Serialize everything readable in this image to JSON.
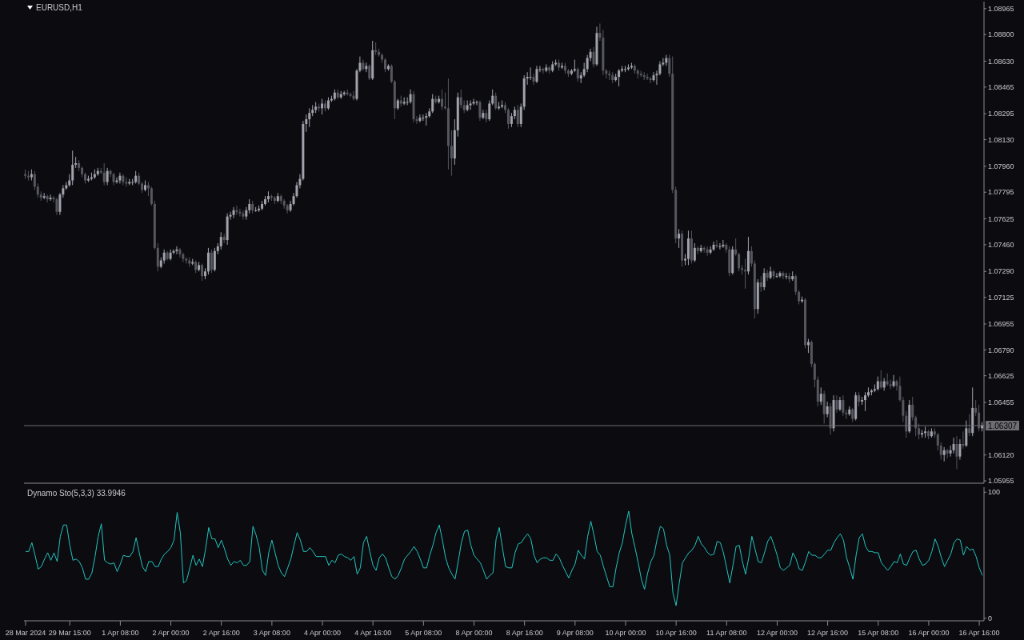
{
  "chart_data": [
    {
      "type": "candlestick",
      "title": "EURUSD,H1",
      "tick_labels": "y",
      "ohlc": [
        [
          1.0791,
          1.0794,
          1.0788,
          1.079
        ],
        [
          1.079,
          1.0793,
          1.0787,
          1.0789
        ],
        [
          1.0789,
          1.0794,
          1.0787,
          1.0791
        ],
        [
          1.0791,
          1.0793,
          1.0781,
          1.0783
        ],
        [
          1.0783,
          1.0785,
          1.0776,
          1.0778
        ],
        [
          1.0778,
          1.078,
          1.0774,
          1.0776
        ],
        [
          1.0776,
          1.0779,
          1.0775,
          1.0777
        ],
        [
          1.0777,
          1.0778,
          1.0773,
          1.0775
        ],
        [
          1.0775,
          1.0778,
          1.0774,
          1.0776
        ],
        [
          1.0776,
          1.0777,
          1.0773,
          1.0775
        ],
        [
          1.0775,
          1.0776,
          1.0765,
          1.0767
        ],
        [
          1.0767,
          1.0779,
          1.0765,
          1.0778
        ],
        [
          1.0778,
          1.0784,
          1.0776,
          1.0782
        ],
        [
          1.0782,
          1.0786,
          1.0781,
          1.0784
        ],
        [
          1.0784,
          1.0791,
          1.0783,
          1.0787
        ],
        [
          1.0787,
          1.0806,
          1.0784,
          1.0797
        ],
        [
          1.0797,
          1.0802,
          1.0795,
          1.0798
        ],
        [
          1.0798,
          1.08,
          1.0793,
          1.0795
        ],
        [
          1.0795,
          1.0796,
          1.0789,
          1.0791
        ],
        [
          1.0791,
          1.0792,
          1.0785,
          1.0787
        ],
        [
          1.0787,
          1.079,
          1.0786,
          1.0788
        ],
        [
          1.0788,
          1.0792,
          1.0787,
          1.0789
        ],
        [
          1.0789,
          1.0794,
          1.0788,
          1.0791
        ],
        [
          1.0791,
          1.0795,
          1.079,
          1.0793
        ],
        [
          1.0793,
          1.0795,
          1.0791,
          1.0792
        ],
        [
          1.0792,
          1.0798,
          1.0784,
          1.0786
        ],
        [
          1.0786,
          1.0795,
          1.0784,
          1.0793
        ],
        [
          1.0793,
          1.0794,
          1.0789,
          1.0791
        ],
        [
          1.0791,
          1.0792,
          1.0784,
          1.0786
        ],
        [
          1.0786,
          1.0789,
          1.0785,
          1.0787
        ],
        [
          1.0787,
          1.0792,
          1.0785,
          1.079
        ],
        [
          1.079,
          1.0791,
          1.0784,
          1.0786
        ],
        [
          1.0786,
          1.0789,
          1.0783,
          1.0785
        ],
        [
          1.0785,
          1.0788,
          1.0784,
          1.0786
        ],
        [
          1.0786,
          1.0788,
          1.0784,
          1.0786
        ],
        [
          1.0786,
          1.0793,
          1.0785,
          1.079
        ],
        [
          1.079,
          1.0792,
          1.0784,
          1.0785
        ],
        [
          1.0785,
          1.0786,
          1.0779,
          1.0781
        ],
        [
          1.0781,
          1.0787,
          1.078,
          1.0784
        ],
        [
          1.0784,
          1.0786,
          1.0777,
          1.0782
        ],
        [
          1.0782,
          1.0783,
          1.0771,
          1.0772
        ],
        [
          1.0772,
          1.0774,
          1.0743,
          1.0744
        ],
        [
          1.0744,
          1.0747,
          1.0729,
          1.0732
        ],
        [
          1.0732,
          1.0738,
          1.0731,
          1.0736
        ],
        [
          1.0736,
          1.0743,
          1.0734,
          1.0741
        ],
        [
          1.0741,
          1.0742,
          1.0736,
          1.0737
        ],
        [
          1.0737,
          1.0743,
          1.0736,
          1.0741
        ],
        [
          1.0741,
          1.0743,
          1.074,
          1.0742
        ],
        [
          1.0742,
          1.0745,
          1.074,
          1.0743
        ],
        [
          1.0743,
          1.0744,
          1.0738,
          1.074
        ],
        [
          1.074,
          1.0741,
          1.0735,
          1.0737
        ],
        [
          1.0737,
          1.0738,
          1.0734,
          1.0736
        ],
        [
          1.0736,
          1.0738,
          1.0732,
          1.0734
        ],
        [
          1.0734,
          1.0737,
          1.0733,
          1.0735
        ],
        [
          1.0735,
          1.0736,
          1.0728,
          1.073
        ],
        [
          1.073,
          1.0735,
          1.0729,
          1.0733
        ],
        [
          1.0733,
          1.0734,
          1.0723,
          1.0726
        ],
        [
          1.0726,
          1.0731,
          1.0724,
          1.0729
        ],
        [
          1.0729,
          1.0744,
          1.0727,
          1.0741
        ],
        [
          1.0741,
          1.0743,
          1.0728,
          1.073
        ],
        [
          1.073,
          1.0744,
          1.0729,
          1.0742
        ],
        [
          1.0742,
          1.0747,
          1.074,
          1.0745
        ],
        [
          1.0745,
          1.0754,
          1.0743,
          1.0751
        ],
        [
          1.0751,
          1.0753,
          1.0747,
          1.0749
        ],
        [
          1.0749,
          1.0766,
          1.0746,
          1.0764
        ],
        [
          1.0764,
          1.0767,
          1.0762,
          1.0765
        ],
        [
          1.0765,
          1.077,
          1.0763,
          1.0768
        ],
        [
          1.0768,
          1.0771,
          1.0765,
          1.0767
        ],
        [
          1.0767,
          1.0769,
          1.0764,
          1.0766
        ],
        [
          1.0766,
          1.0768,
          1.0762,
          1.0764
        ],
        [
          1.0764,
          1.077,
          1.0762,
          1.0768
        ],
        [
          1.0768,
          1.0775,
          1.0766,
          1.0772
        ],
        [
          1.0772,
          1.0774,
          1.0766,
          1.0768
        ],
        [
          1.0768,
          1.077,
          1.0767,
          1.0768
        ],
        [
          1.0768,
          1.0771,
          1.0767,
          1.0769
        ],
        [
          1.0769,
          1.0774,
          1.0768,
          1.0772
        ],
        [
          1.0772,
          1.0777,
          1.0771,
          1.0775
        ],
        [
          1.0775,
          1.078,
          1.0773,
          1.0777
        ],
        [
          1.0777,
          1.0778,
          1.0774,
          1.0776
        ],
        [
          1.0776,
          1.0777,
          1.0772,
          1.0774
        ],
        [
          1.0774,
          1.0779,
          1.0773,
          1.0777
        ],
        [
          1.0777,
          1.0778,
          1.0772,
          1.0774
        ],
        [
          1.0774,
          1.0775,
          1.0769,
          1.0771
        ],
        [
          1.0771,
          1.0772,
          1.0766,
          1.0768
        ],
        [
          1.0768,
          1.0774,
          1.0767,
          1.0772
        ],
        [
          1.0772,
          1.0779,
          1.0771,
          1.0777
        ],
        [
          1.0777,
          1.0786,
          1.0776,
          1.0784
        ],
        [
          1.0784,
          1.0791,
          1.0782,
          1.0788
        ],
        [
          1.0788,
          1.0825,
          1.0787,
          1.0823
        ],
        [
          1.0823,
          1.0829,
          1.0818,
          1.0826
        ],
        [
          1.0826,
          1.0833,
          1.0821,
          1.083
        ],
        [
          1.083,
          1.0835,
          1.0828,
          1.0832
        ],
        [
          1.0832,
          1.0837,
          1.083,
          1.0834
        ],
        [
          1.0834,
          1.0836,
          1.0831,
          1.0833
        ],
        [
          1.0833,
          1.0839,
          1.0829,
          1.0836
        ],
        [
          1.0836,
          1.0838,
          1.0831,
          1.0833
        ],
        [
          1.0833,
          1.084,
          1.0832,
          1.0838
        ],
        [
          1.0838,
          1.0841,
          1.0837,
          1.0839
        ],
        [
          1.0839,
          1.0845,
          1.0838,
          1.0843
        ],
        [
          1.0843,
          1.0845,
          1.0839,
          1.084
        ],
        [
          1.084,
          1.0844,
          1.0839,
          1.0842
        ],
        [
          1.0842,
          1.0844,
          1.0841,
          1.0843
        ],
        [
          1.0843,
          1.0845,
          1.0841,
          1.0842
        ],
        [
          1.0842,
          1.0843,
          1.084,
          1.0841
        ],
        [
          1.0841,
          1.0844,
          1.0838,
          1.0839
        ],
        [
          1.0839,
          1.0858,
          1.0838,
          1.0857
        ],
        [
          1.0857,
          1.0866,
          1.0856,
          1.0862
        ],
        [
          1.0862,
          1.0864,
          1.0857,
          1.0858
        ],
        [
          1.0858,
          1.0862,
          1.0856,
          1.086
        ],
        [
          1.086,
          1.0861,
          1.0851,
          1.0852
        ],
        [
          1.0852,
          1.0876,
          1.0851,
          1.087
        ],
        [
          1.087,
          1.0875,
          1.0867,
          1.0869
        ],
        [
          1.0869,
          1.0871,
          1.0866,
          1.0867
        ],
        [
          1.0867,
          1.0868,
          1.0862,
          1.0864
        ],
        [
          1.0864,
          1.0865,
          1.0856,
          1.0858
        ],
        [
          1.0858,
          1.0861,
          1.0857,
          1.086
        ],
        [
          1.086,
          1.0861,
          1.0849,
          1.085
        ],
        [
          1.085,
          1.0851,
          1.0826,
          1.0833
        ],
        [
          1.0833,
          1.0839,
          1.0832,
          1.0838
        ],
        [
          1.0838,
          1.0841,
          1.0834,
          1.0836
        ],
        [
          1.0836,
          1.084,
          1.0835,
          1.0837
        ],
        [
          1.0837,
          1.084,
          1.0835,
          1.0837
        ],
        [
          1.0837,
          1.0845,
          1.0836,
          1.0842
        ],
        [
          1.0842,
          1.0844,
          1.0824,
          1.0826
        ],
        [
          1.0826,
          1.0828,
          1.0823,
          1.0825
        ],
        [
          1.0825,
          1.0829,
          1.0824,
          1.0827
        ],
        [
          1.0827,
          1.0829,
          1.0825,
          1.0827
        ],
        [
          1.0827,
          1.083,
          1.0822,
          1.0828
        ],
        [
          1.0828,
          1.0833,
          1.0827,
          1.0831
        ],
        [
          1.0831,
          1.0842,
          1.083,
          1.0839
        ],
        [
          1.0839,
          1.0841,
          1.0836,
          1.0837
        ],
        [
          1.0837,
          1.0841,
          1.0836,
          1.0839
        ],
        [
          1.0839,
          1.0845,
          1.0832,
          1.0834
        ],
        [
          1.0834,
          1.0843,
          1.0832,
          1.0833
        ],
        [
          1.0833,
          1.0852,
          1.0794,
          1.0809
        ],
        [
          1.0809,
          1.0819,
          1.079,
          1.0801
        ],
        [
          1.0801,
          1.0826,
          1.0797,
          1.0819
        ],
        [
          1.0819,
          1.0843,
          1.0815,
          1.084
        ],
        [
          1.084,
          1.0845,
          1.0833,
          1.0835
        ],
        [
          1.0835,
          1.0838,
          1.083,
          1.0832
        ],
        [
          1.0832,
          1.0838,
          1.0831,
          1.0835
        ],
        [
          1.0835,
          1.0838,
          1.0832,
          1.0836
        ],
        [
          1.0836,
          1.0839,
          1.0835,
          1.0837
        ],
        [
          1.0837,
          1.0838,
          1.0835,
          1.0837
        ],
        [
          1.0837,
          1.0838,
          1.0825,
          1.0827
        ],
        [
          1.0827,
          1.0832,
          1.0826,
          1.083
        ],
        [
          1.083,
          1.0832,
          1.0824,
          1.0826
        ],
        [
          1.0826,
          1.0838,
          1.0825,
          1.0836
        ],
        [
          1.0836,
          1.0845,
          1.0835,
          1.0841
        ],
        [
          1.0841,
          1.0843,
          1.0832,
          1.0833
        ],
        [
          1.0833,
          1.0837,
          1.0832,
          1.0834
        ],
        [
          1.0834,
          1.0838,
          1.0833,
          1.0835
        ],
        [
          1.0835,
          1.0837,
          1.083,
          1.0832
        ],
        [
          1.0832,
          1.0833,
          1.082,
          1.0823
        ],
        [
          1.0823,
          1.083,
          1.0821,
          1.0828
        ],
        [
          1.0828,
          1.0834,
          1.0826,
          1.0832
        ],
        [
          1.0832,
          1.0835,
          1.0821,
          1.0823
        ],
        [
          1.0823,
          1.0836,
          1.0821,
          1.0834
        ],
        [
          1.0834,
          1.0854,
          1.0832,
          1.0852
        ],
        [
          1.0852,
          1.0856,
          1.0848,
          1.0853
        ],
        [
          1.0853,
          1.0859,
          1.0851,
          1.0853
        ],
        [
          1.0853,
          1.0855,
          1.0848,
          1.085
        ],
        [
          1.085,
          1.086,
          1.0849,
          1.0858
        ],
        [
          1.0858,
          1.086,
          1.0856,
          1.0858
        ],
        [
          1.0858,
          1.0859,
          1.0855,
          1.0857
        ],
        [
          1.0857,
          1.0861,
          1.0856,
          1.0859
        ],
        [
          1.0859,
          1.086,
          1.0855,
          1.0857
        ],
        [
          1.0857,
          1.0863,
          1.0856,
          1.0861
        ],
        [
          1.0861,
          1.0864,
          1.086,
          1.0862
        ],
        [
          1.0862,
          1.0864,
          1.0857,
          1.0859
        ],
        [
          1.0859,
          1.0862,
          1.0858,
          1.086
        ],
        [
          1.086,
          1.0862,
          1.0855,
          1.0857
        ],
        [
          1.0857,
          1.0858,
          1.0853,
          1.0855
        ],
        [
          1.0855,
          1.0858,
          1.0854,
          1.0857
        ],
        [
          1.0857,
          1.0864,
          1.0856,
          1.0858
        ],
        [
          1.0858,
          1.0859,
          1.085,
          1.0852
        ],
        [
          1.0852,
          1.0856,
          1.0849,
          1.0854
        ],
        [
          1.0854,
          1.0862,
          1.0853,
          1.0858
        ],
        [
          1.0858,
          1.0867,
          1.0856,
          1.0865
        ],
        [
          1.0865,
          1.0871,
          1.0863,
          1.0869
        ],
        [
          1.0869,
          1.0872,
          1.0859,
          1.0861
        ],
        [
          1.0861,
          1.0885,
          1.086,
          1.0881
        ],
        [
          1.0881,
          1.0887,
          1.0876,
          1.0878
        ],
        [
          1.0878,
          1.0883,
          1.0854,
          1.0857
        ],
        [
          1.0857,
          1.0858,
          1.0852,
          1.0855
        ],
        [
          1.0855,
          1.0857,
          1.0851,
          1.0854
        ],
        [
          1.0854,
          1.0856,
          1.0849,
          1.0851
        ],
        [
          1.0851,
          1.0855,
          1.085,
          1.0853
        ],
        [
          1.0853,
          1.0858,
          1.0847,
          1.0857
        ],
        [
          1.0857,
          1.086,
          1.0856,
          1.0858
        ],
        [
          1.0858,
          1.086,
          1.0856,
          1.0858
        ],
        [
          1.0858,
          1.0861,
          1.0857,
          1.0859
        ],
        [
          1.0859,
          1.0862,
          1.0858,
          1.086
        ],
        [
          1.086,
          1.0861,
          1.0855,
          1.0857
        ],
        [
          1.0857,
          1.0858,
          1.0852,
          1.0855
        ],
        [
          1.0855,
          1.0857,
          1.0853,
          1.0854
        ],
        [
          1.0854,
          1.0856,
          1.0851,
          1.0853
        ],
        [
          1.0853,
          1.0855,
          1.0851,
          1.0852
        ],
        [
          1.0852,
          1.0853,
          1.0849,
          1.0851
        ],
        [
          1.0851,
          1.0856,
          1.085,
          1.0854
        ],
        [
          1.0854,
          1.0857,
          1.0848,
          1.0855
        ],
        [
          1.0855,
          1.0863,
          1.0854,
          1.0861
        ],
        [
          1.0861,
          1.0865,
          1.086,
          1.0862
        ],
        [
          1.0862,
          1.0867,
          1.086,
          1.0865
        ],
        [
          1.0865,
          1.0867,
          1.0853,
          1.0855
        ],
        [
          1.0855,
          1.0866,
          1.0779,
          1.0781
        ],
        [
          1.0781,
          1.0783,
          1.0747,
          1.075
        ],
        [
          1.075,
          1.0756,
          1.0744,
          1.0753
        ],
        [
          1.0753,
          1.0755,
          1.0732,
          1.0736
        ],
        [
          1.0736,
          1.074,
          1.0733,
          1.0737
        ],
        [
          1.0737,
          1.0755,
          1.0733,
          1.075
        ],
        [
          1.075,
          1.0755,
          1.0734,
          1.0736
        ],
        [
          1.0736,
          1.0747,
          1.0735,
          1.0744
        ],
        [
          1.0744,
          1.0745,
          1.074,
          1.0742
        ],
        [
          1.0742,
          1.0746,
          1.0741,
          1.0744
        ],
        [
          1.0744,
          1.0745,
          1.0741,
          1.0743
        ],
        [
          1.0743,
          1.0745,
          1.0739,
          1.0741
        ],
        [
          1.0741,
          1.0745,
          1.074,
          1.0743
        ],
        [
          1.0743,
          1.0748,
          1.0742,
          1.0746
        ],
        [
          1.0746,
          1.0749,
          1.0744,
          1.0745
        ],
        [
          1.0745,
          1.0747,
          1.0743,
          1.0745
        ],
        [
          1.0745,
          1.0749,
          1.0744,
          1.0746
        ],
        [
          1.0746,
          1.0747,
          1.0741,
          1.0743
        ],
        [
          1.0743,
          1.0745,
          1.0726,
          1.0728
        ],
        [
          1.0728,
          1.0745,
          1.0727,
          1.0743
        ],
        [
          1.0743,
          1.075,
          1.0739,
          1.074
        ],
        [
          1.074,
          1.0741,
          1.0729,
          1.0731
        ],
        [
          1.0731,
          1.0733,
          1.0727,
          1.073
        ],
        [
          1.073,
          1.0737,
          1.0718,
          1.0729
        ],
        [
          1.0729,
          1.0751,
          1.0727,
          1.0742
        ],
        [
          1.0742,
          1.0745,
          1.0732,
          1.0734
        ],
        [
          1.0734,
          1.0736,
          1.0699,
          1.0705
        ],
        [
          1.0705,
          1.0724,
          1.0702,
          1.0722
        ],
        [
          1.0722,
          1.0726,
          1.0716,
          1.0719
        ],
        [
          1.0719,
          1.0731,
          1.0717,
          1.0728
        ],
        [
          1.0728,
          1.073,
          1.0723,
          1.0725
        ],
        [
          1.0725,
          1.0732,
          1.0724,
          1.0729
        ],
        [
          1.0729,
          1.073,
          1.0724,
          1.0726
        ],
        [
          1.0726,
          1.0728,
          1.0725,
          1.0726
        ],
        [
          1.0726,
          1.0729,
          1.0725,
          1.0728
        ],
        [
          1.0728,
          1.0729,
          1.0724,
          1.0726
        ],
        [
          1.0726,
          1.0728,
          1.0724,
          1.0726
        ],
        [
          1.0726,
          1.0728,
          1.0722,
          1.0724
        ],
        [
          1.0724,
          1.0729,
          1.0723,
          1.0726
        ],
        [
          1.0726,
          1.0727,
          1.0714,
          1.0716
        ],
        [
          1.0716,
          1.0717,
          1.0708,
          1.071
        ],
        [
          1.071,
          1.0713,
          1.0709,
          1.0711
        ],
        [
          1.0711,
          1.0712,
          1.068,
          1.0682
        ],
        [
          1.0682,
          1.0686,
          1.0677,
          1.0684
        ],
        [
          1.0684,
          1.0685,
          1.0668,
          1.067
        ],
        [
          1.067,
          1.0671,
          1.0655,
          1.066
        ],
        [
          1.066,
          1.0662,
          1.0643,
          1.0646
        ],
        [
          1.0646,
          1.0655,
          1.0644,
          1.0651
        ],
        [
          1.0651,
          1.0653,
          1.0632,
          1.0638
        ],
        [
          1.0638,
          1.0646,
          1.0636,
          1.0643
        ],
        [
          1.0643,
          1.0645,
          1.0625,
          1.0629
        ],
        [
          1.0629,
          1.065,
          1.0627,
          1.0647
        ],
        [
          1.0647,
          1.065,
          1.0639,
          1.0641
        ],
        [
          1.0641,
          1.0649,
          1.064,
          1.0647
        ],
        [
          1.0647,
          1.065,
          1.0637,
          1.0639
        ],
        [
          1.0639,
          1.0641,
          1.0635,
          1.0638
        ],
        [
          1.0638,
          1.0643,
          1.0637,
          1.0641
        ],
        [
          1.0641,
          1.0642,
          1.0633,
          1.0635
        ],
        [
          1.0635,
          1.0652,
          1.0634,
          1.065
        ],
        [
          1.065,
          1.0652,
          1.0643,
          1.0646
        ],
        [
          1.0646,
          1.0649,
          1.0644,
          1.0647
        ],
        [
          1.0647,
          1.0652,
          1.064,
          1.065
        ],
        [
          1.065,
          1.0655,
          1.0649,
          1.0652
        ],
        [
          1.0652,
          1.0654,
          1.065,
          1.0653
        ],
        [
          1.0653,
          1.0657,
          1.0652,
          1.0654
        ],
        [
          1.0654,
          1.0662,
          1.0653,
          1.0659
        ],
        [
          1.0659,
          1.0666,
          1.0654,
          1.0655
        ],
        [
          1.0655,
          1.0661,
          1.0653,
          1.0659
        ],
        [
          1.0659,
          1.0664,
          1.0656,
          1.0657
        ],
        [
          1.0657,
          1.066,
          1.0654,
          1.0656
        ],
        [
          1.0656,
          1.0663,
          1.0655,
          1.0659
        ],
        [
          1.0659,
          1.066,
          1.0653,
          1.0656
        ],
        [
          1.0656,
          1.0662,
          1.0646,
          1.0647
        ],
        [
          1.0647,
          1.0649,
          1.0633,
          1.0637
        ],
        [
          1.0637,
          1.064,
          1.0623,
          1.0627
        ],
        [
          1.0627,
          1.0647,
          1.0626,
          1.0644
        ],
        [
          1.0644,
          1.0649,
          1.0634,
          1.0636
        ],
        [
          1.0636,
          1.0637,
          1.0624,
          1.0629
        ],
        [
          1.0629,
          1.0632,
          1.0622,
          1.0625
        ],
        [
          1.0625,
          1.0628,
          1.0623,
          1.0626
        ],
        [
          1.0626,
          1.063,
          1.0623,
          1.0627
        ],
        [
          1.0627,
          1.0628,
          1.0622,
          1.0624
        ],
        [
          1.0624,
          1.0629,
          1.0623,
          1.0627
        ],
        [
          1.0627,
          1.0629,
          1.0623,
          1.0625
        ],
        [
          1.0625,
          1.0626,
          1.0615,
          1.0618
        ],
        [
          1.0618,
          1.062,
          1.0609,
          1.0612
        ],
        [
          1.0612,
          1.0617,
          1.0608,
          1.0615
        ],
        [
          1.0615,
          1.0616,
          1.061,
          1.0613
        ],
        [
          1.0613,
          1.0618,
          1.0611,
          1.0615
        ],
        [
          1.0615,
          1.0623,
          1.0613,
          1.0619
        ],
        [
          1.0619,
          1.0624,
          1.0603,
          1.0611
        ],
        [
          1.0611,
          1.0622,
          1.0609,
          1.0619
        ],
        [
          1.0619,
          1.0627,
          1.0616,
          1.0618
        ],
        [
          1.0618,
          1.0634,
          1.0617,
          1.0629
        ],
        [
          1.0629,
          1.0638,
          1.0624,
          1.0626
        ],
        [
          1.0626,
          1.0655,
          1.0624,
          1.0642
        ],
        [
          1.0642,
          1.0647,
          1.0637,
          1.0639
        ],
        [
          1.0639,
          1.0644,
          1.0627,
          1.0629
        ],
        [
          1.0629,
          1.0633,
          1.0627,
          1.0631
        ]
      ],
      "ylim": [
        1.0594,
        1.0901
      ],
      "yticks": [
        1.08965,
        {
          "value": 1.088,
          "label": "1.08800"
        },
        {
          "value": 1.0863,
          "label": "1.08630"
        },
        1.08465,
        1.08295,
        {
          "value": 1.0813,
          "label": "1.08130"
        },
        {
          "value": 1.0796,
          "label": "1.07960"
        },
        1.07795,
        1.07625,
        {
          "value": 1.0746,
          "label": "1.07460"
        },
        {
          "value": 1.0729,
          "label": "1.07290"
        },
        1.07125,
        1.06955,
        {
          "value": 1.0679,
          "label": "1.06790"
        },
        1.06625,
        1.06455,
        {
          "value": 1.0612,
          "label": "1.06120"
        },
        1.05955
      ],
      "ref_lines": [
        {
          "axis": "y",
          "value": 1.06307,
          "label": "1.06307",
          "color": "#6e6e74"
        }
      ]
    },
    {
      "type": "line",
      "title": "Dynamo Sto(5,3,3) 33.9946",
      "categories": [
        "28 Mar 2024",
        null,
        null,
        null,
        null,
        null,
        null,
        null,
        null,
        null,
        null,
        null,
        null,
        null,
        "29 Mar 15:00",
        null,
        null,
        null,
        null,
        null,
        null,
        null,
        null,
        null,
        null,
        null,
        null,
        null,
        null,
        null,
        "1 Apr 08:00",
        null,
        null,
        null,
        null,
        null,
        null,
        null,
        null,
        null,
        null,
        null,
        null,
        null,
        null,
        null,
        "2 Apr 00:00",
        null,
        null,
        null,
        null,
        null,
        null,
        null,
        null,
        null,
        null,
        null,
        null,
        null,
        null,
        null,
        "2 Apr 16:00",
        null,
        null,
        null,
        null,
        null,
        null,
        null,
        null,
        null,
        null,
        null,
        null,
        null,
        null,
        null,
        "3 Apr 08:00",
        null,
        null,
        null,
        null,
        null,
        null,
        null,
        null,
        null,
        null,
        null,
        null,
        null,
        null,
        null,
        "4 Apr 00:00",
        null,
        null,
        null,
        null,
        null,
        null,
        null,
        null,
        null,
        null,
        null,
        null,
        null,
        null,
        null,
        "4 Apr 16:00",
        null,
        null,
        null,
        null,
        null,
        null,
        null,
        null,
        null,
        null,
        null,
        null,
        null,
        null,
        null,
        "5 Apr 08:00",
        null,
        null,
        null,
        null,
        null,
        null,
        null,
        null,
        null,
        null,
        null,
        null,
        null,
        null,
        null,
        "8 Apr 00:00",
        null,
        null,
        null,
        null,
        null,
        null,
        null,
        null,
        null,
        null,
        null,
        null,
        null,
        null,
        null,
        "8 Apr 16:00",
        null,
        null,
        null,
        null,
        null,
        null,
        null,
        null,
        null,
        null,
        null,
        null,
        null,
        null,
        null,
        "9 Apr 08:00",
        null,
        null,
        null,
        null,
        null,
        null,
        null,
        null,
        null,
        null,
        null,
        null,
        null,
        null,
        null,
        "10 Apr 00:00",
        null,
        null,
        null,
        null,
        null,
        null,
        null,
        null,
        null,
        null,
        null,
        null,
        null,
        null,
        null,
        "10 Apr 16:00",
        null,
        null,
        null,
        null,
        null,
        null,
        null,
        null,
        null,
        null,
        null,
        null,
        null,
        null,
        null,
        "11 Apr 08:00",
        null,
        null,
        null,
        null,
        null,
        null,
        null,
        null,
        null,
        null,
        null,
        null,
        null,
        null,
        null,
        "12 Apr 00:00",
        null,
        null,
        null,
        null,
        null,
        null,
        null,
        null,
        null,
        null,
        null,
        null,
        null,
        null,
        null,
        "12 Apr 16:00",
        null,
        null,
        null,
        null,
        null,
        null,
        null,
        null,
        null,
        null,
        null,
        null,
        null,
        null,
        null,
        "15 Apr 08:00",
        null,
        null,
        null,
        null,
        null,
        null,
        null,
        null,
        null,
        null,
        null,
        null,
        null,
        null,
        null,
        "16 Apr 00:00",
        null,
        null,
        null,
        null,
        null,
        null,
        null,
        null,
        null,
        null,
        null,
        null,
        null,
        null,
        null,
        "16 Apr 16:00",
        null
      ],
      "series": [
        {
          "color": "#22c4bc",
          "values": [
            53,
            53,
            60,
            50,
            39,
            41,
            47,
            52,
            46,
            52,
            45,
            65,
            74,
            74,
            58,
            46,
            47,
            45,
            40,
            31,
            31,
            36,
            49,
            65,
            75,
            46,
            44,
            43,
            44,
            37,
            43,
            50,
            49,
            49,
            53,
            64,
            52,
            41,
            37,
            45,
            45,
            41,
            41,
            47,
            51,
            53,
            56,
            62,
            84,
            68,
            28,
            30,
            40,
            50,
            42,
            47,
            41,
            55,
            72,
            63,
            63,
            56,
            62,
            55,
            47,
            42,
            45,
            44,
            46,
            42,
            42,
            45,
            73,
            66,
            56,
            38,
            34,
            52,
            62,
            52,
            42,
            36,
            33,
            40,
            47,
            58,
            68,
            62,
            53,
            53,
            56,
            53,
            49,
            49,
            49,
            49,
            42,
            46,
            44,
            50,
            51,
            49,
            48,
            46,
            49,
            35,
            40,
            60,
            65,
            53,
            42,
            38,
            48,
            51,
            48,
            40,
            33,
            31,
            34,
            40,
            47,
            50,
            53,
            57,
            53,
            47,
            40,
            40,
            50,
            58,
            68,
            74,
            62,
            48,
            40,
            35,
            31,
            45,
            60,
            69,
            70,
            58,
            50,
            47,
            44,
            38,
            31,
            34,
            36,
            63,
            72,
            56,
            41,
            40,
            40,
            52,
            59,
            60,
            64,
            67,
            63,
            50,
            44,
            47,
            48,
            48,
            46,
            46,
            51,
            48,
            42,
            37,
            32,
            38,
            43,
            54,
            50,
            47,
            65,
            77,
            66,
            53,
            50,
            41,
            33,
            25,
            25,
            40,
            52,
            60,
            74,
            85,
            67,
            56,
            44,
            31,
            23,
            36,
            45,
            50,
            63,
            73,
            71,
            58,
            50,
            20,
            10,
            28,
            44,
            48,
            52,
            54,
            58,
            65,
            59,
            56,
            52,
            50,
            51,
            61,
            60,
            52,
            40,
            28,
            42,
            57,
            58,
            45,
            35,
            48,
            65,
            55,
            45,
            44,
            52,
            61,
            65,
            58,
            50,
            40,
            38,
            40,
            42,
            52,
            47,
            39,
            38,
            45,
            53,
            50,
            50,
            48,
            48,
            51,
            54,
            54,
            60,
            64,
            67,
            62,
            48,
            40,
            31,
            50,
            64,
            67,
            57,
            53,
            53,
            52,
            52,
            44,
            41,
            38,
            41,
            45,
            44,
            51,
            43,
            42,
            48,
            53,
            54,
            47,
            42,
            43,
            46,
            53,
            63,
            57,
            48,
            41,
            46,
            51,
            60,
            63,
            62,
            50,
            57,
            54,
            55,
            49,
            40,
            33.9946
          ]
        }
      ],
      "ylim": [
        -2,
        104
      ],
      "yticks": [
        0,
        100
      ]
    }
  ]
}
